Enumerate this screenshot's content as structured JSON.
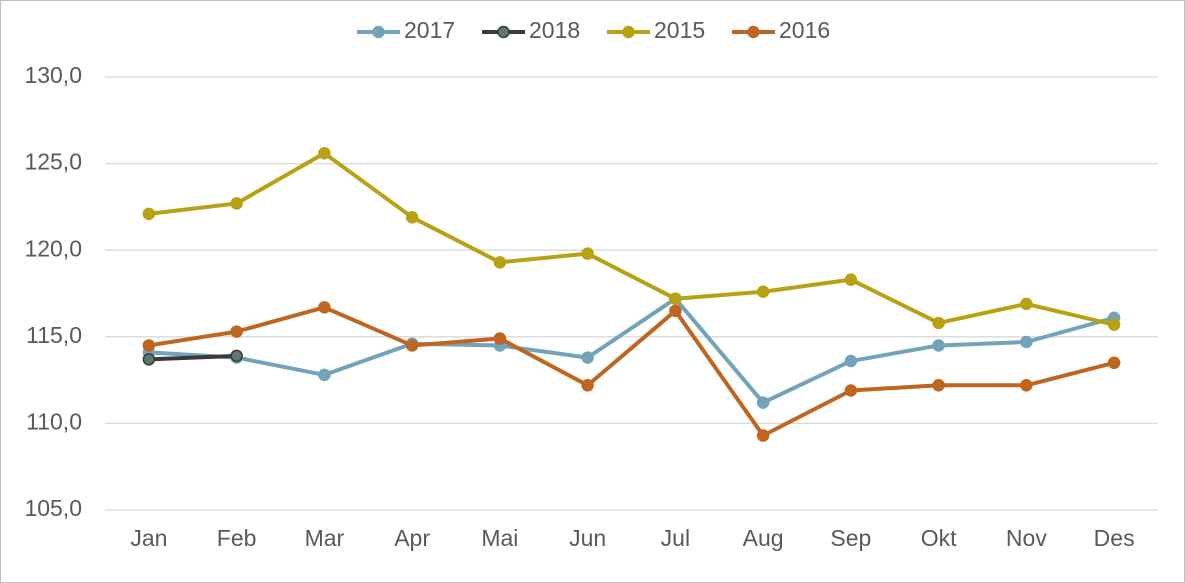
{
  "chart_data": {
    "type": "line",
    "categories": [
      "Jan",
      "Feb",
      "Mar",
      "Apr",
      "Mai",
      "Jun",
      "Jul",
      "Aug",
      "Sep",
      "Okt",
      "Nov",
      "Des"
    ],
    "series": [
      {
        "name": "2017",
        "color": "#71a4b9",
        "values": [
          114.1,
          113.8,
          112.8,
          114.6,
          114.5,
          113.8,
          117.2,
          111.2,
          113.6,
          114.5,
          114.7,
          116.1
        ]
      },
      {
        "name": "2018",
        "color": "#3a3a3a",
        "values": [
          113.7,
          113.9,
          null,
          null,
          null,
          null,
          null,
          null,
          null,
          null,
          null,
          null
        ]
      },
      {
        "name": "2015",
        "color": "#b8a113",
        "values": [
          122.1,
          122.7,
          125.6,
          121.9,
          119.3,
          119.8,
          117.2,
          117.6,
          118.3,
          115.8,
          116.9,
          115.7
        ]
      },
      {
        "name": "2016",
        "color": "#c0651f",
        "values": [
          114.5,
          115.3,
          116.7,
          114.5,
          114.9,
          112.2,
          116.5,
          109.3,
          111.9,
          112.2,
          112.2,
          113.5
        ]
      }
    ],
    "ylim": [
      105,
      130
    ],
    "yticks": [
      {
        "value": 105,
        "label": "105,0"
      },
      {
        "value": 110,
        "label": "110,0"
      },
      {
        "value": 115,
        "label": "115,0"
      },
      {
        "value": 120,
        "label": "120,0"
      },
      {
        "value": 125,
        "label": "125,0"
      },
      {
        "value": 130,
        "label": "130,0"
      }
    ],
    "grid": true,
    "legend": "top"
  }
}
